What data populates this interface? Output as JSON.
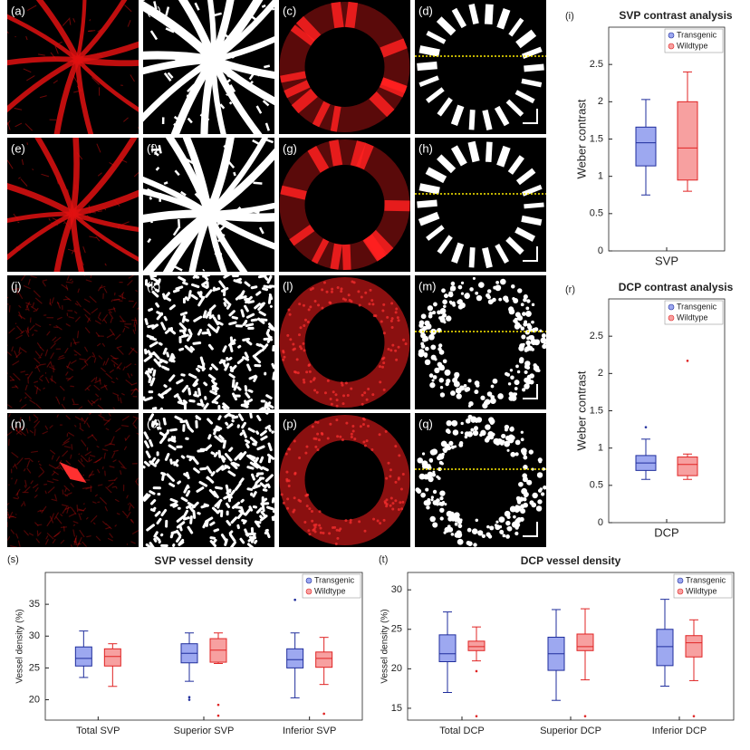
{
  "image_panels": [
    "(a)",
    "(b)",
    "(c)",
    "(d)",
    "(e)",
    "(f)",
    "(g)",
    "(h)",
    "(j)",
    "(k)",
    "(l)",
    "(m)",
    "(n)",
    "(o)",
    "(p)",
    "(q)"
  ],
  "chart_data": [
    {
      "type": "box",
      "label": "(i)",
      "title": "SVP contrast analysis",
      "ylabel": "Weber contrast",
      "categories": [
        "SVP"
      ],
      "ylim": [
        0,
        3
      ],
      "yticks": [
        0,
        0.5,
        1,
        1.5,
        2,
        2.5
      ],
      "series": [
        {
          "name": "Transgenic",
          "color": "#9da8f0",
          "edge": "#1f2d9c",
          "values": [
            {
              "min": 0.75,
              "q1": 1.14,
              "median": 1.45,
              "q3": 1.66,
              "max": 2.03,
              "outliers": []
            }
          ]
        },
        {
          "name": "Wildtype",
          "color": "#f7a0a0",
          "edge": "#e02424",
          "values": [
            {
              "min": 0.8,
              "q1": 0.95,
              "median": 1.38,
              "q3": 2.0,
              "max": 2.4,
              "outliers": []
            }
          ]
        }
      ]
    },
    {
      "type": "box",
      "label": "(r)",
      "title": "DCP contrast analysis",
      "ylabel": "Weber contrast",
      "categories": [
        "DCP"
      ],
      "ylim": [
        0,
        3
      ],
      "yticks": [
        0,
        0.5,
        1,
        1.5,
        2,
        2.5
      ],
      "series": [
        {
          "name": "Transgenic",
          "color": "#9da8f0",
          "edge": "#1f2d9c",
          "values": [
            {
              "min": 0.58,
              "q1": 0.7,
              "median": 0.8,
              "q3": 0.9,
              "max": 1.12,
              "outliers": [
                1.28
              ]
            }
          ]
        },
        {
          "name": "Wildtype",
          "color": "#f7a0a0",
          "edge": "#e02424",
          "values": [
            {
              "min": 0.58,
              "q1": 0.63,
              "median": 0.78,
              "q3": 0.88,
              "max": 0.92,
              "outliers": [
                2.17
              ]
            }
          ]
        }
      ]
    },
    {
      "type": "box",
      "label": "(s)",
      "title": "SVP vessel density",
      "ylabel": "Vessel density (%)",
      "categories": [
        "Total SVP",
        "Superior SVP",
        "Inferior SVP"
      ],
      "ylim": [
        16.8,
        40
      ],
      "yticks": [
        20,
        25,
        30,
        35
      ],
      "series": [
        {
          "name": "Transgenic",
          "color": "#9da8f0",
          "edge": "#1f2d9c",
          "values": [
            {
              "min": 23.5,
              "q1": 25.3,
              "median": 26.5,
              "q3": 28.3,
              "max": 30.8,
              "outliers": []
            },
            {
              "min": 22.9,
              "q1": 25.8,
              "median": 27.3,
              "q3": 28.8,
              "max": 30.5,
              "outliers": [
                20.4,
                20.0
              ]
            },
            {
              "min": 20.3,
              "q1": 25.0,
              "median": 26.3,
              "q3": 28.0,
              "max": 30.5,
              "outliers": [
                35.7
              ]
            }
          ]
        },
        {
          "name": "Wildtype",
          "color": "#f7a0a0",
          "edge": "#e02424",
          "values": [
            {
              "min": 22.1,
              "q1": 25.3,
              "median": 26.8,
              "q3": 28.0,
              "max": 28.8,
              "outliers": []
            },
            {
              "min": 25.7,
              "q1": 25.9,
              "median": 27.8,
              "q3": 29.6,
              "max": 30.5,
              "outliers": [
                19.2,
                17.5
              ]
            },
            {
              "min": 22.4,
              "q1": 25.1,
              "median": 26.5,
              "q3": 27.5,
              "max": 29.8,
              "outliers": [
                17.8
              ]
            }
          ]
        }
      ]
    },
    {
      "type": "box",
      "label": "(t)",
      "title": "DCP vessel density",
      "ylabel": "Vessel density (%)",
      "categories": [
        "Total DCP",
        "Superior DCP",
        "Inferior DCP"
      ],
      "ylim": [
        13.5,
        32.2
      ],
      "yticks": [
        15,
        20,
        25,
        30
      ],
      "series": [
        {
          "name": "Transgenic",
          "color": "#9da8f0",
          "edge": "#1f2d9c",
          "values": [
            {
              "min": 17.0,
              "q1": 20.9,
              "median": 21.9,
              "q3": 24.3,
              "max": 27.2,
              "outliers": []
            },
            {
              "min": 16.0,
              "q1": 19.8,
              "median": 21.9,
              "q3": 24.0,
              "max": 27.5,
              "outliers": []
            },
            {
              "min": 17.8,
              "q1": 20.4,
              "median": 22.8,
              "q3": 25.0,
              "max": 28.8,
              "outliers": []
            }
          ]
        },
        {
          "name": "Wildtype",
          "color": "#f7a0a0",
          "edge": "#e02424",
          "values": [
            {
              "min": 21.0,
              "q1": 22.3,
              "median": 22.8,
              "q3": 23.5,
              "max": 25.3,
              "outliers": [
                19.7,
                14.0
              ]
            },
            {
              "min": 18.6,
              "q1": 22.3,
              "median": 22.8,
              "q3": 24.4,
              "max": 27.6,
              "outliers": [
                14.0
              ]
            },
            {
              "min": 18.5,
              "q1": 21.5,
              "median": 23.3,
              "q3": 24.2,
              "max": 26.2,
              "outliers": [
                14.0
              ]
            }
          ]
        }
      ]
    }
  ]
}
